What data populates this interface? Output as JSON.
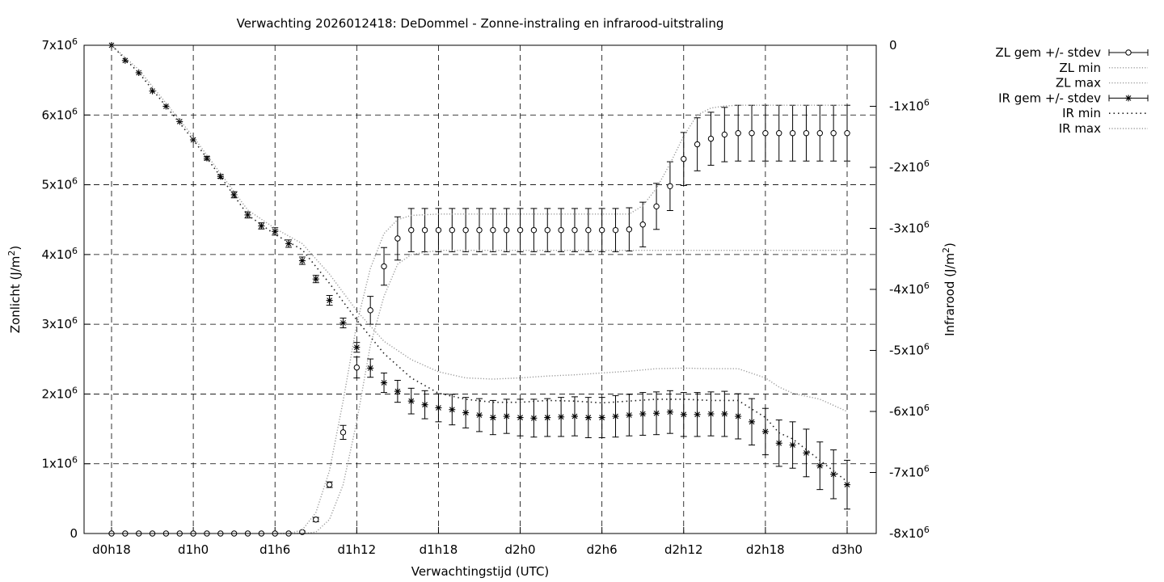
{
  "chart_data": {
    "type": "line",
    "title": "Verwachting 2026012418: DeDommel - Zonne-instraling en infrarood-uitstraling",
    "xlabel": "Verwachtingstijd (UTC)",
    "ylabel": "Zonlicht (J/m2)",
    "y2label": "Infrarood (J/m2)",
    "x_unit": "hours since d0h0",
    "xlim": [
      17,
      74
    ],
    "xticks": [
      {
        "x": 18,
        "label": "d0h18"
      },
      {
        "x": 24,
        "label": "d1h0"
      },
      {
        "x": 30,
        "label": "d1h6"
      },
      {
        "x": 36,
        "label": "d1h12"
      },
      {
        "x": 42,
        "label": "d1h18"
      },
      {
        "x": 48,
        "label": "d2h0"
      },
      {
        "x": 54,
        "label": "d2h6"
      },
      {
        "x": 60,
        "label": "d2h12"
      },
      {
        "x": 66,
        "label": "d2h18"
      },
      {
        "x": 72,
        "label": "d3h0"
      }
    ],
    "ylim": [
      0,
      7000000
    ],
    "yticks": [
      {
        "v": 0,
        "label": "0"
      },
      {
        "v": 1000000,
        "label": "1x10^6"
      },
      {
        "v": 2000000,
        "label": "2x10^6"
      },
      {
        "v": 3000000,
        "label": "3x10^6"
      },
      {
        "v": 4000000,
        "label": "4x10^6"
      },
      {
        "v": 5000000,
        "label": "5x10^6"
      },
      {
        "v": 6000000,
        "label": "6x10^6"
      },
      {
        "v": 7000000,
        "label": "7x10^6"
      }
    ],
    "y2lim": [
      -8000000,
      0
    ],
    "y2ticks": [
      {
        "v": 0,
        "label": "0"
      },
      {
        "v": -1000000,
        "label": "-1x10^6"
      },
      {
        "v": -2000000,
        "label": "-2x10^6"
      },
      {
        "v": -3000000,
        "label": "-3x10^6"
      },
      {
        "v": -4000000,
        "label": "-4x10^6"
      },
      {
        "v": -5000000,
        "label": "-5x10^6"
      },
      {
        "v": -6000000,
        "label": "-6x10^6"
      },
      {
        "v": -7000000,
        "label": "-7x10^6"
      },
      {
        "v": -8000000,
        "label": "-8x10^6"
      }
    ],
    "grid": true,
    "legend_position": "outside top-right",
    "x": [
      18,
      19,
      20,
      21,
      22,
      23,
      24,
      25,
      26,
      27,
      28,
      29,
      30,
      31,
      32,
      33,
      34,
      35,
      36,
      37,
      38,
      39,
      40,
      41,
      42,
      43,
      44,
      45,
      46,
      47,
      48,
      49,
      50,
      51,
      52,
      53,
      54,
      55,
      56,
      57,
      58,
      59,
      60,
      61,
      62,
      63,
      64,
      65,
      66,
      67,
      68,
      69,
      70,
      71,
      72
    ],
    "series": [
      {
        "name": "ZL gem +/- stdev",
        "axis": "y1",
        "marker": "circle",
        "values": [
          0,
          0,
          0,
          0,
          0,
          0,
          0,
          0,
          0,
          0,
          0,
          0,
          0,
          0,
          20000,
          200000,
          700000,
          1450000,
          2380000,
          3200000,
          3830000,
          4230000,
          4350000,
          4350000,
          4350000,
          4350000,
          4350000,
          4350000,
          4350000,
          4350000,
          4350000,
          4350000,
          4350000,
          4350000,
          4350000,
          4350000,
          4350000,
          4350000,
          4360000,
          4430000,
          4690000,
          4980000,
          5370000,
          5580000,
          5660000,
          5720000,
          5740000,
          5740000,
          5740000,
          5740000,
          5740000,
          5740000,
          5740000,
          5740000,
          5740000
        ],
        "stdev": [
          0,
          0,
          0,
          0,
          0,
          0,
          0,
          0,
          0,
          0,
          0,
          0,
          0,
          0,
          15000,
          30000,
          40000,
          100000,
          150000,
          200000,
          270000,
          310000,
          310000,
          310000,
          310000,
          310000,
          310000,
          310000,
          310000,
          310000,
          310000,
          310000,
          310000,
          310000,
          310000,
          310000,
          310000,
          310000,
          310000,
          320000,
          330000,
          350000,
          380000,
          380000,
          380000,
          390000,
          400000,
          400000,
          400000,
          400000,
          400000,
          400000,
          400000,
          400000,
          400000
        ]
      },
      {
        "name": "ZL min",
        "axis": "y1",
        "line": "dotted-light",
        "x": [
          30,
          31,
          32,
          33,
          34,
          35,
          36,
          37,
          38,
          39,
          40,
          42,
          44,
          46,
          48,
          50,
          52,
          54,
          56,
          57,
          58,
          59,
          60,
          61,
          62,
          63,
          64,
          66,
          68,
          70,
          72
        ],
        "values": [
          0,
          0,
          0,
          20000,
          200000,
          700000,
          1600000,
          2700000,
          3400000,
          3860000,
          4000000,
          4060000,
          4060000,
          4060000,
          4060000,
          4060000,
          4060000,
          4060000,
          4060000,
          4060000,
          4060000,
          4060000,
          4060000,
          4060000,
          4060000,
          4060000,
          4060000,
          4060000,
          4060000,
          4060000,
          4060000
        ]
      },
      {
        "name": "ZL max",
        "axis": "y1",
        "line": "dotted-light",
        "x": [
          30,
          31,
          32,
          33,
          34,
          35,
          36,
          37,
          38,
          39,
          40,
          42,
          44,
          46,
          48,
          50,
          52,
          54,
          56,
          57,
          58,
          59,
          60,
          61,
          62,
          63,
          64,
          66,
          68,
          70,
          72
        ],
        "values": [
          0,
          0,
          50000,
          300000,
          900000,
          1900000,
          3000000,
          3800000,
          4300000,
          4500000,
          4560000,
          4580000,
          4580000,
          4580000,
          4580000,
          4580000,
          4580000,
          4580000,
          4580000,
          4700000,
          4950000,
          5300000,
          5700000,
          6000000,
          6100000,
          6130000,
          6140000,
          6140000,
          6140000,
          6140000,
          6140000
        ]
      },
      {
        "name": "IR gem +/- stdev",
        "axis": "y2",
        "marker": "star",
        "values": [
          0,
          -250000,
          -450000,
          -750000,
          -1000000,
          -1250000,
          -1550000,
          -1850000,
          -2150000,
          -2450000,
          -2780000,
          -2960000,
          -3050000,
          -3250000,
          -3530000,
          -3830000,
          -4180000,
          -4550000,
          -4950000,
          -5290000,
          -5530000,
          -5670000,
          -5830000,
          -5890000,
          -5940000,
          -5970000,
          -6020000,
          -6060000,
          -6100000,
          -6080000,
          -6100000,
          -6110000,
          -6100000,
          -6090000,
          -6080000,
          -6100000,
          -6100000,
          -6080000,
          -6060000,
          -6040000,
          -6030000,
          -6010000,
          -6050000,
          -6050000,
          -6040000,
          -6040000,
          -6080000,
          -6170000,
          -6330000,
          -6520000,
          -6550000,
          -6680000,
          -6890000,
          -7030000,
          -7200000
        ],
        "stdev": [
          0,
          0,
          0,
          0,
          0,
          0,
          0,
          30000,
          30000,
          50000,
          50000,
          50000,
          60000,
          60000,
          60000,
          60000,
          80000,
          80000,
          80000,
          150000,
          160000,
          180000,
          210000,
          230000,
          230000,
          250000,
          250000,
          270000,
          280000,
          280000,
          300000,
          310000,
          310000,
          320000,
          320000,
          330000,
          330000,
          340000,
          340000,
          350000,
          350000,
          350000,
          360000,
          360000,
          360000,
          370000,
          370000,
          380000,
          380000,
          380000,
          380000,
          390000,
          390000,
          400000,
          400000
        ]
      },
      {
        "name": "IR min",
        "axis": "y2",
        "line": "dotted-dark",
        "x": [
          18,
          20,
          22,
          24,
          26,
          28,
          30,
          32,
          34,
          36,
          38,
          40,
          42,
          44,
          46,
          48,
          50,
          52,
          54,
          56,
          58,
          60,
          62,
          64,
          66,
          67,
          68,
          70,
          72
        ],
        "values": [
          0,
          -450000,
          -1000000,
          -1550000,
          -2150000,
          -2780000,
          -3100000,
          -3350000,
          -3900000,
          -4500000,
          -5050000,
          -5450000,
          -5700000,
          -5800000,
          -5850000,
          -5850000,
          -5820000,
          -5830000,
          -5860000,
          -5830000,
          -5800000,
          -5800000,
          -5820000,
          -5820000,
          -6100000,
          -6350000,
          -6450000,
          -6800000,
          -7150000
        ]
      },
      {
        "name": "IR max",
        "axis": "y2",
        "line": "dotted-light",
        "x": [
          18,
          20,
          22,
          24,
          26,
          28,
          30,
          32,
          34,
          36,
          38,
          40,
          42,
          44,
          46,
          48,
          50,
          52,
          54,
          56,
          58,
          60,
          62,
          64,
          66,
          67,
          68,
          70,
          72
        ],
        "values": [
          0,
          -400000,
          -950000,
          -1500000,
          -2100000,
          -2700000,
          -3000000,
          -3250000,
          -3750000,
          -4350000,
          -4850000,
          -5150000,
          -5350000,
          -5450000,
          -5470000,
          -5450000,
          -5420000,
          -5400000,
          -5370000,
          -5340000,
          -5300000,
          -5290000,
          -5300000,
          -5300000,
          -5450000,
          -5600000,
          -5700000,
          -5800000,
          -6000000
        ]
      }
    ]
  }
}
